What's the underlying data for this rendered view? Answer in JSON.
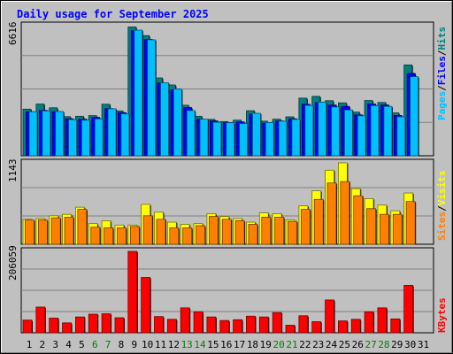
{
  "chart_data": {
    "type": "bar",
    "title": "Daily usage for September 2025",
    "categories": [
      "1",
      "2",
      "3",
      "4",
      "5",
      "6",
      "7",
      "8",
      "9",
      "10",
      "11",
      "12",
      "13",
      "14",
      "15",
      "16",
      "17",
      "18",
      "19",
      "20",
      "21",
      "22",
      "23",
      "24",
      "25",
      "26",
      "27",
      "28",
      "29",
      "30",
      "31"
    ],
    "weekend_days": [
      "6",
      "7",
      "13",
      "14",
      "20",
      "21",
      "27",
      "28"
    ],
    "panels": [
      {
        "id": "hits-files-pages",
        "max_label": "6616",
        "ymax": 6616,
        "right_label_parts": [
          "Pages",
          "Files",
          "Hits"
        ],
        "series": [
          {
            "name": "Hits",
            "color": "#008080",
            "values": [
              2370,
              2630,
              2440,
              1990,
              2010,
              2040,
              2620,
              2280,
              6550,
              6110,
              3960,
              3600,
              2570,
              2010,
              1850,
              1740,
              1810,
              2290,
              1760,
              1860,
              1980,
              2930,
              3020,
              2800,
              2690,
              2220,
              2810,
              2710,
              2180,
              4620,
              null
            ]
          },
          {
            "name": "Files",
            "color": "#0000ff",
            "values": [
              2240,
              2310,
              2250,
              1880,
              1860,
              1950,
              2400,
              2190,
              6360,
              5920,
              3700,
              3360,
              2450,
              1860,
              1770,
              1680,
              1720,
              2120,
              1660,
              1770,
              1880,
              2620,
              2710,
              2580,
              2510,
              2080,
              2630,
              2580,
              2050,
              4190,
              null
            ]
          },
          {
            "name": "Pages",
            "color": "#00c0ff",
            "values": [
              2240,
              2280,
              2250,
              1840,
              1810,
              1870,
              2390,
              2130,
              6390,
              5900,
              3710,
              3390,
              2300,
              1860,
              1700,
              1680,
              1640,
              2160,
              1690,
              1760,
              1850,
              2560,
              2730,
              2480,
              2330,
              2030,
              2550,
              2510,
              1980,
              4020,
              null
            ]
          }
        ]
      },
      {
        "id": "visits-sites",
        "max_label": "1143",
        "ymax": 1143,
        "right_label_parts": [
          "Sites",
          "Visits"
        ],
        "series": [
          {
            "name": "Visits",
            "color": "#ffff00",
            "values": [
              350,
              360,
              400,
              420,
              520,
              290,
              330,
              270,
              270,
              560,
              450,
              310,
              280,
              290,
              430,
              390,
              360,
              310,
              440,
              430,
              340,
              540,
              750,
              1040,
              1143,
              780,
              640,
              550,
              470,
              720,
              null
            ]
          },
          {
            "name": "Sites",
            "color": "#ff8000",
            "values": [
              340,
              340,
              370,
              380,
              490,
              240,
              230,
              230,
              250,
              400,
              350,
              230,
              230,
              260,
              390,
              350,
              330,
              280,
              380,
              380,
              320,
              490,
              630,
              860,
              880,
              680,
              500,
              420,
              420,
              600,
              null
            ]
          }
        ]
      },
      {
        "id": "kbytes",
        "max_label": "206059",
        "ymax": 206059,
        "right_label_parts": [
          "KBytes"
        ],
        "series": [
          {
            "name": "KBytes",
            "color": "#ff0000",
            "values": [
              32000,
              65000,
              37000,
              25000,
              40000,
              47000,
              48000,
              38000,
              206000,
              140000,
              41000,
              34000,
              63000,
              53000,
              40000,
              31000,
              33000,
              42000,
              40000,
              51000,
              19000,
              43000,
              28000,
              83000,
              30000,
              34000,
              53000,
              63000,
              35000,
              120000,
              null
            ]
          }
        ]
      }
    ]
  }
}
